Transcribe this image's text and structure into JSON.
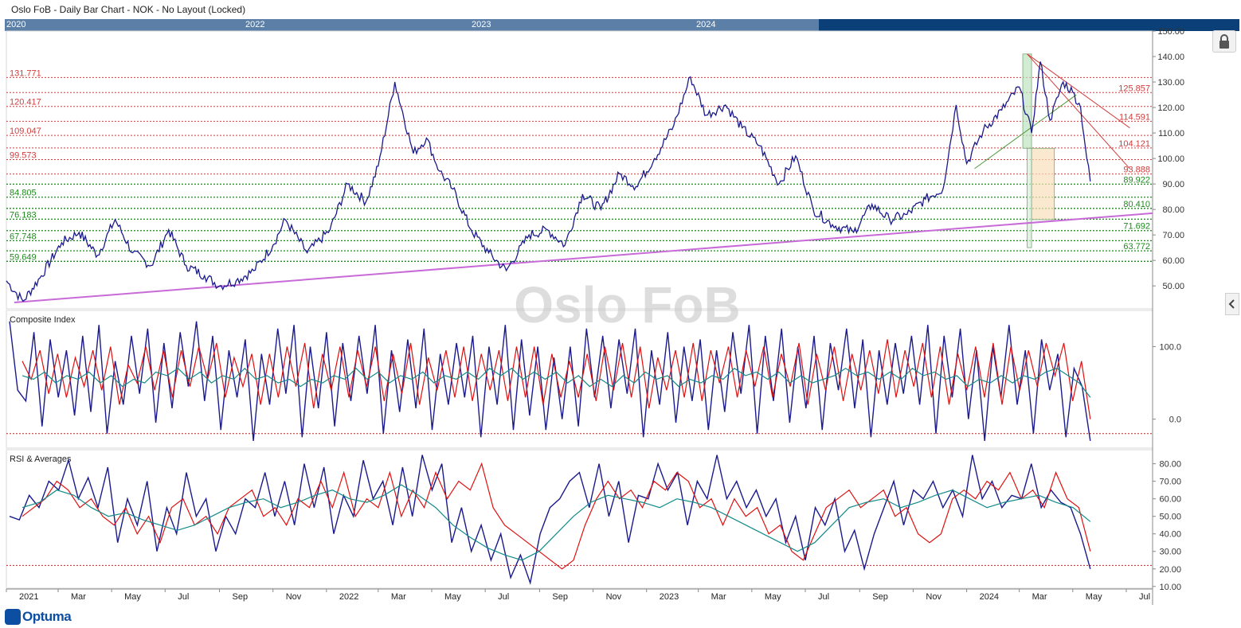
{
  "window": {
    "title": "Oslo FoB - Daily Bar Chart - NOK - No Layout (Locked)"
  },
  "navigator": {
    "years": [
      "2020",
      "2022",
      "2023",
      "2024"
    ]
  },
  "watermark": "Oslo FoB",
  "brand": "Optuma",
  "colors": {
    "price_line": "#1a1a8c",
    "trendline": "#c86bd8",
    "resistance": "#d23c3c",
    "support": "#1f8a1f",
    "ci_ma_fast": "#e01010",
    "ci_ma_slow": "#138a8a",
    "ref_line": "#c02020"
  },
  "chart_data": [
    {
      "type": "line",
      "name": "price",
      "time_axis": {
        "labels": [
          "2021",
          "Mar",
          "May",
          "Jul",
          "Sep",
          "Nov",
          "2022",
          "Mar",
          "May",
          "Jul",
          "Sep",
          "Nov",
          "2023",
          "Mar",
          "May",
          "Jul",
          "Sep",
          "Nov",
          "2024",
          "Mar",
          "May",
          "Jul"
        ],
        "start": "2021-01-01",
        "end": "2024-07-31"
      },
      "y_ticks": [
        "50.00",
        "60.00",
        "70.00",
        "80.00",
        "90.00",
        "100.00",
        "110.00",
        "120.00",
        "130.00",
        "140.00",
        "150.00"
      ],
      "ylim": [
        41,
        150
      ],
      "series": [
        {
          "x": [
            "2021-01-01",
            "2021-01-20",
            "2021-02-10",
            "2021-03-05",
            "2021-03-25",
            "2021-04-15",
            "2021-05-05",
            "2021-05-25",
            "2021-06-15",
            "2021-07-05",
            "2021-07-25",
            "2021-08-15",
            "2021-09-01",
            "2021-09-20",
            "2021-10-10",
            "2021-11-01",
            "2021-11-15",
            "2021-12-10",
            "2022-01-05",
            "2022-01-25",
            "2022-02-15",
            "2022-03-01",
            "2022-03-20",
            "2022-04-10",
            "2022-04-25",
            "2022-05-10",
            "2022-05-25",
            "2022-06-15",
            "2022-07-05",
            "2022-07-25",
            "2022-08-20",
            "2022-09-10",
            "2022-09-30",
            "2022-10-20",
            "2022-11-10",
            "2022-12-01",
            "2022-12-20",
            "2023-01-10",
            "2023-02-01",
            "2023-02-20",
            "2023-03-10",
            "2023-04-01",
            "2023-04-20",
            "2023-05-10",
            "2023-06-01",
            "2023-06-20",
            "2023-07-10",
            "2023-08-01",
            "2023-08-25",
            "2023-09-15",
            "2023-10-05",
            "2023-10-25",
            "2023-11-15",
            "2023-12-05",
            "2023-12-20",
            "2024-01-01",
            "2024-01-20",
            "2024-02-10",
            "2024-03-01",
            "2024-03-15",
            "2024-03-25",
            "2024-04-05",
            "2024-04-20",
            "2024-05-01",
            "2024-05-10",
            "2024-05-17",
            "2024-05-21"
          ],
          "y": [
            52,
            44,
            54,
            67,
            71,
            62,
            76,
            63,
            58,
            72,
            58,
            54,
            50,
            52,
            56,
            66,
            76,
            63,
            72,
            90,
            83,
            97,
            130,
            102,
            108,
            95,
            88,
            72,
            63,
            56,
            70,
            72,
            66,
            86,
            80,
            94,
            89,
            100,
            113,
            132,
            117,
            121,
            112,
            105,
            90,
            101,
            80,
            74,
            71,
            82,
            76,
            78,
            84,
            88,
            121,
            98,
            111,
            119,
            128,
            110,
            138,
            115,
            130,
            126,
            120,
            100,
            91
          ]
        }
      ],
      "resistance_levels": [
        {
          "value": 131.771,
          "label": "131.771"
        },
        {
          "value": 125.857,
          "label": "125.857"
        },
        {
          "value": 120.417,
          "label": "120.417"
        },
        {
          "value": 114.591,
          "label": "114.591"
        },
        {
          "value": 109.047,
          "label": "109.047"
        },
        {
          "value": 104.121,
          "label": "104.121"
        },
        {
          "value": 99.573,
          "label": "99.573"
        },
        {
          "value": 93.888,
          "label": "93.888"
        }
      ],
      "support_levels": [
        {
          "value": 89.922,
          "label": "89.922"
        },
        {
          "value": 84.805,
          "label": "84.805"
        },
        {
          "value": 80.41,
          "label": "80.410"
        },
        {
          "value": 76.183,
          "label": "76.183"
        },
        {
          "value": 71.692,
          "label": "71.692"
        },
        {
          "value": 67.748,
          "label": "67.748"
        },
        {
          "value": 63.772,
          "label": "63.772"
        },
        {
          "value": 59.649,
          "label": "59.649"
        }
      ],
      "trendline": {
        "from": [
          "2021-01-10",
          43.5
        ],
        "to": [
          "2024-07-31",
          78.5
        ]
      },
      "fan_lines": [
        {
          "from": [
            "2024-03-10",
            141
          ],
          "to": [
            "2024-07-05",
            112
          ]
        },
        {
          "from": [
            "2024-03-10",
            141
          ],
          "to": [
            "2024-07-05",
            96
          ]
        },
        {
          "from": [
            "2024-01-10",
            96
          ],
          "to": [
            "2024-05-05",
            125
          ]
        }
      ],
      "boxes": [
        {
          "x0": "2024-03-05",
          "x1": "2024-03-15",
          "y0": 104,
          "y1": 141
        },
        {
          "x0": "2024-03-15",
          "x1": "2024-04-10",
          "y0": 76,
          "y1": 104
        },
        {
          "x0": "2024-03-10",
          "x1": "2024-03-15",
          "y0": 65,
          "y1": 104
        }
      ]
    },
    {
      "type": "line",
      "title": "Composite Index",
      "y_ticks": [
        "0.0",
        "100.0"
      ],
      "ylim": [
        -40,
        150
      ],
      "reference_line": -20,
      "series": [
        {
          "values": [
            135,
            40,
            25,
            120,
            -10,
            110,
            30,
            95,
            5,
            115,
            10,
            130,
            -20,
            80,
            20,
            115,
            35,
            125,
            -5,
            105,
            15,
            120,
            45,
            135,
            25,
            115,
            -15,
            95,
            30,
            110,
            -30,
            90,
            20,
            125,
            35,
            130,
            -25,
            100,
            15,
            120,
            -10,
            105,
            25,
            115,
            35,
            130,
            -20,
            95,
            10,
            110,
            15,
            125,
            -15,
            90,
            20,
            105,
            30,
            115,
            -25,
            100,
            20,
            130,
            -15,
            110,
            5,
            100,
            -15,
            85,
            0,
            100,
            -10,
            125,
            30,
            115,
            15,
            110,
            35,
            125,
            -25,
            95,
            20,
            120,
            -5,
            100,
            25,
            110,
            -15,
            95,
            10,
            120,
            35,
            130,
            -20,
            115,
            25,
            125,
            -5,
            100,
            15,
            115,
            -15,
            105,
            40,
            125,
            15,
            110,
            -25,
            95,
            20,
            105,
            35,
            115,
            20,
            130,
            -20,
            115,
            30,
            125,
            0,
            95,
            -30,
            100,
            30,
            130,
            20,
            95,
            -20,
            110,
            40,
            90,
            -25,
            70,
            45,
            -30
          ]
        },
        {
          "values": [
            80,
            55,
            95,
            35,
            90,
            30,
            85,
            45,
            95,
            40,
            100,
            20,
            75,
            50,
            100,
            40,
            95,
            30,
            95,
            45,
            100,
            55,
            105,
            30,
            85,
            45,
            90,
            20,
            90,
            30,
            100,
            45,
            105,
            15,
            90,
            40,
            100,
            30,
            95,
            45,
            100,
            25,
            90,
            35,
            105,
            20,
            85,
            40,
            95,
            30,
            100,
            25,
            90,
            40,
            95,
            25,
            100,
            30,
            100,
            20,
            90,
            30,
            80,
            30,
            90,
            25,
            100,
            40,
            105,
            30,
            100,
            15,
            85,
            40,
            95,
            30,
            105,
            25,
            95,
            50,
            100,
            30,
            95,
            45,
            100,
            30,
            90,
            45,
            105,
            20,
            90,
            40,
            100,
            25,
            90,
            40,
            95,
            35,
            110,
            30,
            95,
            45,
            105,
            30,
            100,
            20,
            90,
            40,
            100,
            30,
            105,
            20,
            100,
            40,
            95,
            45,
            105,
            60,
            105,
            25,
            80,
            0
          ]
        },
        {
          "values": [
            60,
            55,
            65,
            50,
            60,
            55,
            65,
            50,
            60,
            45,
            55,
            50,
            65,
            60,
            70,
            55,
            65,
            50,
            60,
            55,
            70,
            55,
            60,
            50,
            55,
            45,
            55,
            50,
            60,
            55,
            70,
            55,
            65,
            50,
            60,
            55,
            65,
            50,
            60,
            55,
            65,
            55,
            70,
            60,
            70,
            55,
            65,
            55,
            65,
            50,
            60,
            45,
            55,
            45,
            60,
            50,
            65,
            55,
            60,
            45,
            55,
            50,
            60,
            55,
            70,
            60,
            65,
            55,
            65,
            50,
            60,
            50,
            55,
            60,
            70,
            60,
            65,
            55,
            65,
            55,
            70,
            60,
            65,
            55,
            60,
            45,
            55,
            50,
            60,
            50,
            60,
            55,
            65,
            70,
            60,
            50,
            30
          ]
        }
      ]
    },
    {
      "type": "line",
      "title": "RSI & Averages",
      "y_ticks": [
        "10.00",
        "20.00",
        "30.00",
        "40.00",
        "50.00",
        "60.00",
        "70.00",
        "80.00"
      ],
      "ylim": [
        9,
        88
      ],
      "reference_line": 22,
      "series": [
        {
          "values": [
            50,
            48,
            62,
            55,
            70,
            65,
            82,
            60,
            72,
            55,
            78,
            35,
            60,
            45,
            70,
            30,
            55,
            40,
            75,
            50,
            60,
            30,
            50,
            40,
            60,
            55,
            75,
            50,
            70,
            45,
            80,
            55,
            78,
            40,
            62,
            50,
            82,
            60,
            70,
            45,
            78,
            50,
            85,
            65,
            80,
            35,
            55,
            30,
            45,
            25,
            40,
            15,
            28,
            12,
            40,
            55,
            60,
            70,
            75,
            55,
            80,
            50,
            70,
            35,
            62,
            60,
            80,
            65,
            75,
            45,
            70,
            60,
            85,
            60,
            70,
            55,
            65,
            50,
            60,
            35,
            50,
            25,
            55,
            45,
            60,
            30,
            42,
            20,
            40,
            55,
            70,
            45,
            65,
            60,
            70,
            55,
            65,
            50,
            85,
            60,
            70,
            55,
            62,
            60,
            80,
            55,
            65,
            58,
            55,
            40,
            20
          ]
        },
        {
          "values": [
            50,
            55,
            60,
            70,
            65,
            55,
            60,
            50,
            45,
            55,
            40,
            50,
            35,
            55,
            60,
            45,
            50,
            40,
            55,
            60,
            65,
            50,
            55,
            45,
            60,
            55,
            70,
            55,
            75,
            50,
            60,
            55,
            75,
            50,
            65,
            55,
            75,
            60,
            70,
            65,
            80,
            55,
            45,
            40,
            35,
            30,
            25,
            20,
            25,
            45,
            60,
            70,
            60,
            65,
            55,
            70,
            65,
            75,
            70,
            55,
            60,
            45,
            60,
            50,
            55,
            40,
            45,
            30,
            25,
            40,
            55,
            60,
            65,
            55,
            60,
            65,
            50,
            55,
            40,
            35,
            40,
            60,
            65,
            60,
            70,
            65,
            75,
            60,
            65,
            55,
            75,
            60,
            55,
            30
          ]
        },
        {
          "values": [
            55,
            58,
            65,
            62,
            55,
            50,
            52,
            48,
            45,
            42,
            45,
            50,
            55,
            58,
            60,
            55,
            58,
            62,
            65,
            60,
            58,
            62,
            68,
            62,
            55,
            45,
            38,
            32,
            28,
            25,
            30,
            40,
            50,
            58,
            62,
            60,
            58,
            55,
            60,
            58,
            55,
            50,
            45,
            40,
            35,
            30,
            35,
            45,
            55,
            58,
            60,
            55,
            58,
            62,
            65,
            60,
            55,
            58,
            60,
            62,
            58,
            55,
            47
          ]
        }
      ]
    }
  ]
}
